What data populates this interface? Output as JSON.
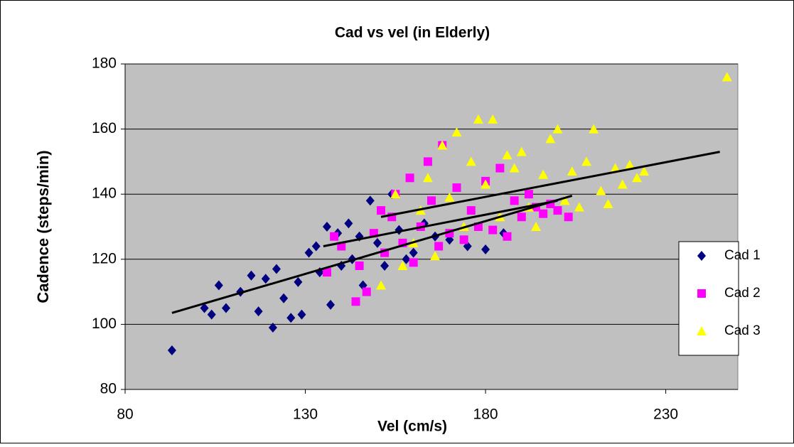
{
  "chart_data": {
    "type": "scatter",
    "title": "Cad vs vel (in Elderly)",
    "xlabel": "Vel (cm/s)",
    "ylabel": "Cadence (steps/min)",
    "xlim": [
      80,
      250
    ],
    "xticks": [
      80,
      130,
      180,
      230
    ],
    "ylim": [
      80,
      180
    ],
    "yticks": [
      80,
      100,
      120,
      140,
      160,
      180
    ],
    "grid": true,
    "legend": "right",
    "series": [
      {
        "name": "Cad 1",
        "color": "#000080",
        "marker": "diamond",
        "x": [
          93,
          102,
          104,
          106,
          108,
          112,
          115,
          117,
          119,
          121,
          122,
          124,
          126,
          128,
          129,
          131,
          133,
          134,
          136,
          137,
          139,
          140,
          142,
          143,
          145,
          146,
          148,
          150,
          152,
          154,
          156,
          158,
          160,
          163,
          166,
          170,
          175,
          180,
          185
        ],
        "values": [
          92,
          105,
          103,
          112,
          105,
          110,
          115,
          104,
          114,
          99,
          117,
          108,
          102,
          113,
          103,
          122,
          124,
          116,
          130,
          106,
          128,
          118,
          131,
          120,
          127,
          112,
          138,
          125,
          118,
          140,
          129,
          120,
          122,
          131,
          127,
          126,
          124,
          123,
          128
        ]
      },
      {
        "name": "Cad 2",
        "color": "#ff00ff",
        "marker": "square",
        "x": [
          136,
          138,
          140,
          144,
          145,
          147,
          149,
          151,
          152,
          154,
          155,
          157,
          159,
          160,
          162,
          164,
          165,
          167,
          168,
          170,
          172,
          174,
          176,
          178,
          180,
          182,
          184,
          186,
          188,
          190,
          192,
          194,
          196,
          198,
          200,
          203
        ],
        "values": [
          116,
          127,
          124,
          107,
          118,
          110,
          128,
          135,
          122,
          133,
          140,
          125,
          145,
          119,
          130,
          150,
          138,
          124,
          155,
          128,
          142,
          126,
          135,
          130,
          144,
          129,
          148,
          127,
          138,
          133,
          140,
          136,
          134,
          137,
          135,
          133
        ]
      },
      {
        "name": "Cad 3",
        "color": "#ffff00",
        "marker": "triangle",
        "x": [
          151,
          155,
          157,
          160,
          162,
          164,
          166,
          168,
          170,
          172,
          174,
          176,
          178,
          180,
          182,
          184,
          186,
          188,
          190,
          192,
          194,
          196,
          198,
          200,
          202,
          204,
          206,
          208,
          210,
          212,
          214,
          216,
          218,
          220,
          222,
          224,
          247
        ],
        "values": [
          112,
          140,
          118,
          125,
          135,
          145,
          121,
          155,
          139,
          159,
          130,
          150,
          163,
          143,
          163,
          133,
          152,
          148,
          153,
          136,
          130,
          146,
          157,
          160,
          138,
          147,
          136,
          150,
          160,
          141,
          137,
          148,
          143,
          149,
          145,
          147,
          176
        ]
      }
    ],
    "trendlines": [
      {
        "x": [
          93,
          204
        ],
        "values": [
          103.5,
          139.5
        ]
      },
      {
        "x": [
          135,
          200
        ],
        "values": [
          124,
          138
        ]
      },
      {
        "x": [
          151,
          245
        ],
        "values": [
          133,
          153
        ]
      }
    ]
  }
}
